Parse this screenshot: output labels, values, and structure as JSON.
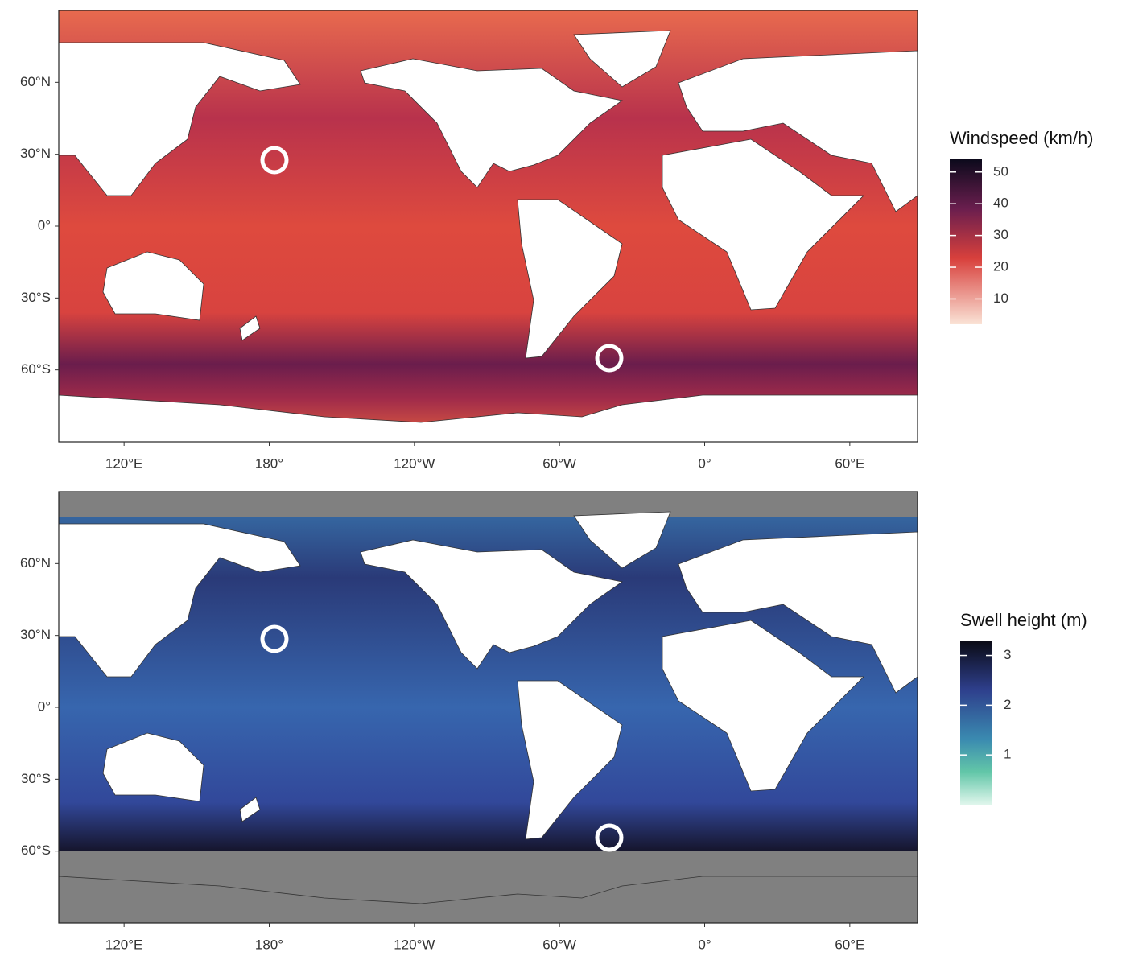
{
  "panels": [
    {
      "legend": {
        "title": "Windspeed (km/h)",
        "ticks": [
          10,
          20,
          30,
          40,
          50
        ],
        "lim": [
          2,
          54
        ]
      },
      "xlim": [
        93,
        448
      ],
      "ylim": [
        -90,
        90
      ],
      "lat_ticks": [
        {
          "value": 60,
          "label": "60°N"
        },
        {
          "value": 30,
          "label": "30°N"
        },
        {
          "value": 0,
          "label": "0°"
        },
        {
          "value": -30,
          "label": "30°S"
        },
        {
          "value": -60,
          "label": "60°S"
        }
      ],
      "lon_ticks": [
        {
          "value": 120,
          "label": "120°E"
        },
        {
          "value": 180,
          "label": "180°"
        },
        {
          "value": -120,
          "label": "120°W"
        },
        {
          "value": -60,
          "label": "60°W"
        },
        {
          "value": 0,
          "label": "0°"
        },
        {
          "value": 60,
          "label": "60°E"
        }
      ]
    },
    {
      "legend": {
        "title": "Swell height (m)",
        "ticks": [
          1,
          2,
          3
        ],
        "lim": [
          0,
          3.3
        ]
      },
      "xlim": [
        93,
        448
      ],
      "ylim": [
        -90,
        90
      ],
      "lat_ticks": [
        {
          "value": 60,
          "label": "60°N"
        },
        {
          "value": 30,
          "label": "30°N"
        },
        {
          "value": 0,
          "label": "0°"
        },
        {
          "value": -30,
          "label": "30°S"
        },
        {
          "value": -60,
          "label": "60°S"
        }
      ],
      "lon_ticks": [
        {
          "value": 120,
          "label": "120°E"
        },
        {
          "value": 180,
          "label": "180°"
        },
        {
          "value": -120,
          "label": "120°W"
        },
        {
          "value": -60,
          "label": "60°W"
        },
        {
          "value": 0,
          "label": "0°"
        },
        {
          "value": 60,
          "label": "60°E"
        }
      ]
    }
  ]
}
